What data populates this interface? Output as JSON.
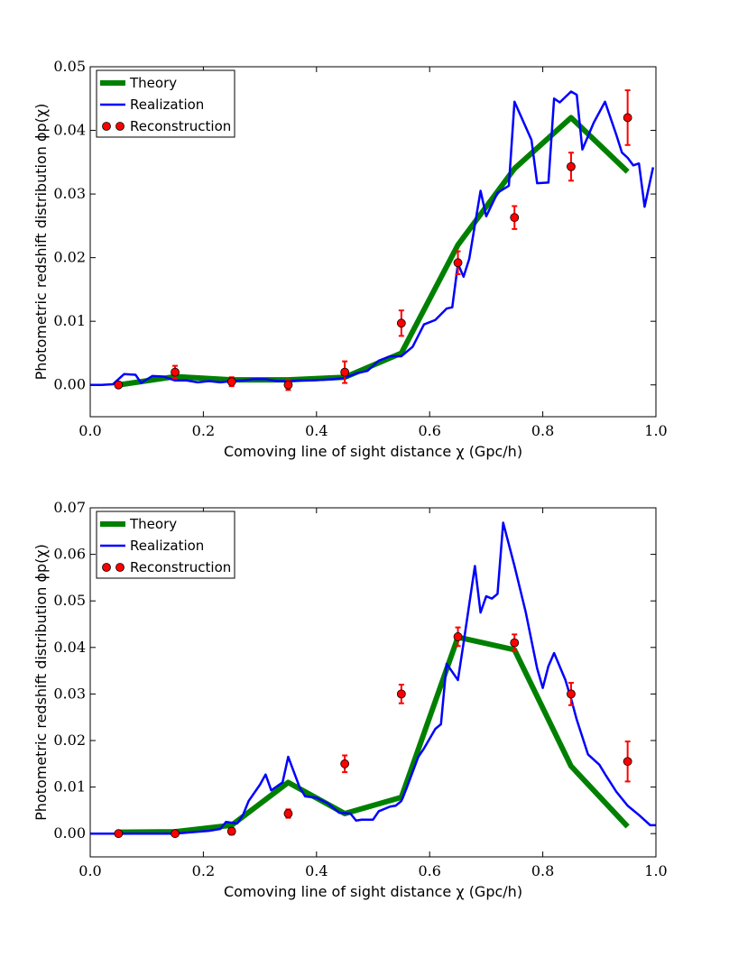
{
  "chart_data": [
    {
      "type": "line",
      "xlabel": "Comoving line of sight distance χ (Gpc/h)",
      "ylabel": "Photometric redshift distribution ϕp(χ)",
      "xlim": [
        0,
        1
      ],
      "ylim": [
        -0.005,
        0.05
      ],
      "xticks": [
        {
          "value": 0,
          "label": "0.0"
        },
        0.2,
        0.4,
        0.6,
        0.8,
        {
          "value": 1,
          "label": "1.0"
        }
      ],
      "yticks": [
        {
          "value": 0,
          "label": "0.00"
        },
        0.01,
        0.02,
        0.03,
        0.04,
        0.05
      ],
      "legend": "upper left",
      "series": [
        {
          "name": "Theory",
          "kind": "line",
          "color": "#008000",
          "x": [
            0.05,
            0.15,
            0.25,
            0.35,
            0.45,
            0.55,
            0.65,
            0.75,
            0.85,
            0.95
          ],
          "values": [
            0,
            0.0013,
            0.0008,
            0.0008,
            0.0012,
            0.005,
            0.022,
            0.034,
            0.042,
            0.0335
          ]
        },
        {
          "name": "Realization",
          "kind": "line",
          "color": "#0000ff",
          "x": [
            0,
            0.02,
            0.04,
            0.06,
            0.08,
            0.09,
            0.11,
            0.13,
            0.15,
            0.17,
            0.19,
            0.21,
            0.23,
            0.25,
            0.27,
            0.29,
            0.31,
            0.33,
            0.35,
            0.37,
            0.39,
            0.41,
            0.43,
            0.45,
            0.47,
            0.49,
            0.51,
            0.53,
            0.55,
            0.57,
            0.59,
            0.61,
            0.63,
            0.64,
            0.65,
            0.66,
            0.67,
            0.69,
            0.7,
            0.72,
            0.74,
            0.75,
            0.78,
            0.79,
            0.81,
            0.82,
            0.83,
            0.85,
            0.86,
            0.87,
            0.89,
            0.91,
            0.93,
            0.94,
            0.95,
            0.96,
            0.97,
            0.98,
            0.995
          ],
          "values": [
            0,
            0,
            0.0001,
            0.0017,
            0.0016,
            0.0003,
            0.0014,
            0.0013,
            0.0007,
            0.0007,
            0.0004,
            0.0006,
            0.0004,
            0.0006,
            0.0007,
            0.0009,
            0.0009,
            0.0006,
            0.0006,
            0.0007,
            0.0007,
            0.0008,
            0.0009,
            0.0011,
            0.0018,
            0.0022,
            0.0038,
            0.0045,
            0.0045,
            0.006,
            0.0095,
            0.0102,
            0.012,
            0.0122,
            0.019,
            0.017,
            0.0198,
            0.0305,
            0.0265,
            0.0302,
            0.0313,
            0.0445,
            0.0385,
            0.0317,
            0.0318,
            0.045,
            0.0444,
            0.0461,
            0.0456,
            0.037,
            0.0412,
            0.0445,
            0.0393,
            0.0365,
            0.0357,
            0.0345,
            0.0348,
            0.028,
            0.0342
          ]
        },
        {
          "name": "Reconstruction",
          "kind": "errorbar",
          "color": "#ff0000",
          "x": [
            0.05,
            0.15,
            0.25,
            0.35,
            0.45,
            0.55,
            0.65,
            0.75,
            0.85,
            0.95
          ],
          "values": [
            0,
            0.002,
            0.0005,
            0,
            0.002,
            0.0097,
            0.0192,
            0.0263,
            0.0343,
            0.042
          ],
          "errors": [
            0.0002,
            0.001,
            0.0007,
            0.0008,
            0.0017,
            0.002,
            0.0018,
            0.0018,
            0.0022,
            0.0043
          ]
        }
      ]
    },
    {
      "type": "line",
      "xlabel": "Comoving line of sight distance χ (Gpc/h)",
      "ylabel": "Photometric redshift distribution ϕp(χ)",
      "xlim": [
        0,
        1
      ],
      "ylim": [
        -0.005,
        0.07
      ],
      "xticks": [
        {
          "value": 0,
          "label": "0.0"
        },
        0.2,
        0.4,
        0.6,
        0.8,
        {
          "value": 1,
          "label": "1.0"
        }
      ],
      "yticks": [
        {
          "value": 0,
          "label": "0.00"
        },
        0.01,
        0.02,
        0.03,
        0.04,
        0.05,
        0.06,
        0.07
      ],
      "legend": "upper left",
      "series": [
        {
          "name": "Theory",
          "kind": "line",
          "color": "#008000",
          "x": [
            0.05,
            0.15,
            0.25,
            0.35,
            0.45,
            0.55,
            0.65,
            0.75,
            0.85,
            0.95
          ],
          "values": [
            0.0003,
            0.0004,
            0.0018,
            0.011,
            0.0043,
            0.0078,
            0.0422,
            0.0395,
            0.0145,
            0.0015
          ]
        },
        {
          "name": "Realization",
          "kind": "line",
          "color": "#0000ff",
          "x": [
            0,
            0.1,
            0.15,
            0.18,
            0.21,
            0.23,
            0.24,
            0.26,
            0.27,
            0.28,
            0.3,
            0.31,
            0.32,
            0.34,
            0.35,
            0.37,
            0.38,
            0.4,
            0.42,
            0.44,
            0.46,
            0.47,
            0.48,
            0.5,
            0.51,
            0.53,
            0.54,
            0.55,
            0.56,
            0.58,
            0.59,
            0.61,
            0.62,
            0.63,
            0.65,
            0.66,
            0.68,
            0.69,
            0.7,
            0.71,
            0.72,
            0.73,
            0.75,
            0.77,
            0.79,
            0.8,
            0.81,
            0.82,
            0.84,
            0.85,
            0.86,
            0.88,
            0.9,
            0.91,
            0.93,
            0.95,
            0.97,
            0.99,
            1
          ],
          "values": [
            0,
            0,
            0,
            0.0003,
            0.0006,
            0.001,
            0.0025,
            0.0022,
            0.004,
            0.007,
            0.0105,
            0.0127,
            0.0093,
            0.011,
            0.0165,
            0.01,
            0.008,
            0.0077,
            0.0065,
            0.0045,
            0.0043,
            0.0028,
            0.003,
            0.003,
            0.0048,
            0.0058,
            0.006,
            0.007,
            0.01,
            0.0165,
            0.0183,
            0.0225,
            0.0235,
            0.0365,
            0.033,
            0.041,
            0.0575,
            0.0475,
            0.051,
            0.0505,
            0.0515,
            0.0668,
            0.0575,
            0.0475,
            0.0355,
            0.0313,
            0.036,
            0.0388,
            0.033,
            0.029,
            0.0245,
            0.017,
            0.0148,
            0.0128,
            0.009,
            0.006,
            0.004,
            0.0018,
            0.0018
          ]
        },
        {
          "name": "Reconstruction",
          "kind": "errorbar",
          "color": "#ff0000",
          "x": [
            0.05,
            0.15,
            0.25,
            0.35,
            0.45,
            0.55,
            0.65,
            0.75,
            0.85,
            0.95
          ],
          "values": [
            0,
            0,
            0.0005,
            0.0043,
            0.015,
            0.03,
            0.0423,
            0.041,
            0.03,
            0.0155
          ],
          "errors": [
            0.0003,
            0.0005,
            0.0007,
            0.0009,
            0.0018,
            0.002,
            0.002,
            0.0018,
            0.0024,
            0.0043
          ]
        }
      ]
    }
  ]
}
